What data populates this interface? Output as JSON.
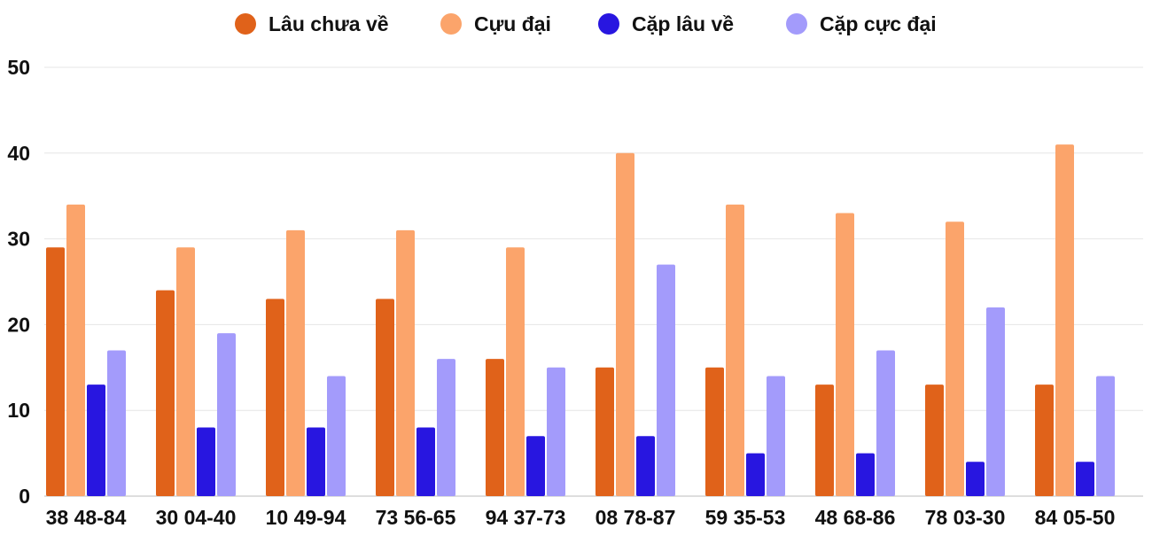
{
  "chart_data": {
    "type": "bar",
    "title": "",
    "xlabel": "",
    "ylabel": "",
    "ylim": [
      0,
      50
    ],
    "yticks": [
      0,
      10,
      20,
      30,
      40,
      50
    ],
    "grid": true,
    "legend_position": "top-center",
    "categories": [
      "38 48-84",
      "30 04-40",
      "10 49-94",
      "73 56-65",
      "94 37-73",
      "08 78-87",
      "59 35-53",
      "48 68-86",
      "78 03-30",
      "84 05-50"
    ],
    "series": [
      {
        "name": "Lâu chưa về",
        "color": "#e0621a",
        "values": [
          29,
          24,
          23,
          23,
          16,
          15,
          15,
          13,
          13,
          13
        ]
      },
      {
        "name": "Cựu đại",
        "color": "#fba46b",
        "values": [
          34,
          29,
          31,
          31,
          29,
          40,
          34,
          33,
          32,
          41
        ]
      },
      {
        "name": "Cặp lâu về",
        "color": "#2816e0",
        "values": [
          13,
          8,
          8,
          8,
          7,
          7,
          5,
          5,
          4,
          4
        ]
      },
      {
        "name": "Cặp cực đại",
        "color": "#a39bfb",
        "values": [
          17,
          19,
          14,
          16,
          15,
          27,
          14,
          17,
          22,
          14
        ]
      }
    ]
  }
}
